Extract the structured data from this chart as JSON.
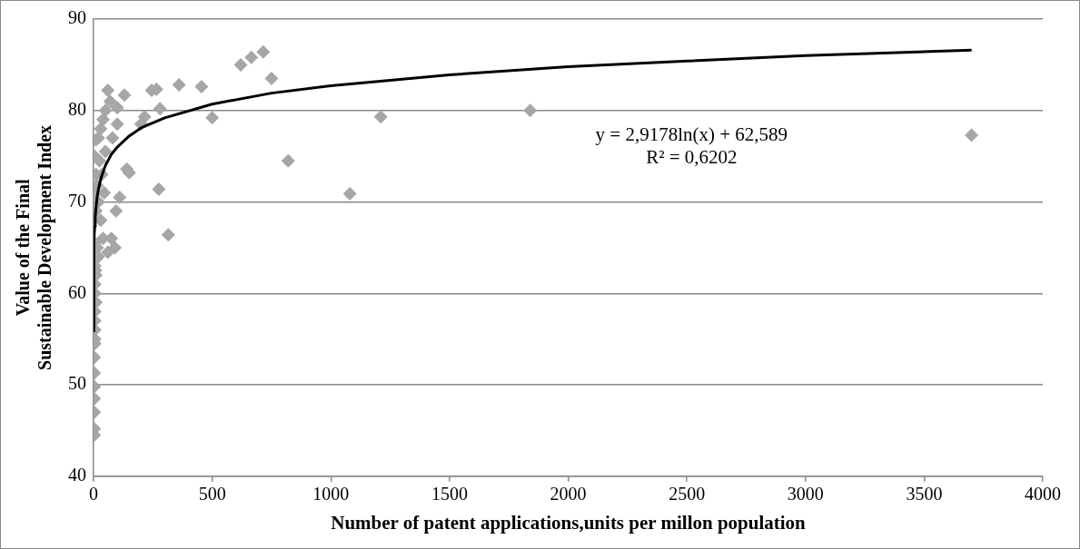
{
  "chart_data": {
    "type": "scatter",
    "xlabel": "Number of patent applications,units per millon population",
    "ylabel": "Value of the Final Sustainable Development Index",
    "xlim": [
      0,
      4000
    ],
    "xticks": [
      0,
      500,
      1000,
      1500,
      2000,
      2500,
      3000,
      3500,
      4000
    ],
    "ylim": [
      40,
      90
    ],
    "yticks": [
      40,
      50,
      60,
      70,
      80,
      90
    ],
    "grid": "y",
    "legend": false,
    "marker": "diamond",
    "annotations": [
      "y = 2,9178ln(x) + 62,589",
      "R² = 0,6202"
    ],
    "series": [
      {
        "color": "#a6a6a6",
        "x": [
          3700,
          1840,
          1210,
          1080,
          820,
          750,
          715,
          665,
          620,
          500,
          455,
          360,
          315,
          280,
          275,
          265,
          245,
          215,
          200,
          150,
          140,
          130,
          110,
          100,
          95,
          90,
          75,
          60,
          70,
          50,
          40,
          30,
          20,
          10,
          5,
          10,
          5,
          20,
          10,
          30,
          45,
          40,
          60,
          20,
          5,
          10,
          5,
          5,
          10,
          5,
          5,
          5,
          5,
          5,
          3,
          3,
          3,
          3,
          3,
          3,
          3,
          8,
          15,
          5,
          50,
          80,
          100,
          25,
          35,
          15
        ],
        "values": [
          77.3,
          80,
          79.3,
          70.9,
          74.5,
          83.5,
          86.4,
          85.8,
          85,
          79.2,
          82.6,
          82.8,
          66.4,
          80.2,
          71.4,
          82.3,
          82.2,
          79.3,
          78.5,
          73.2,
          73.6,
          81.7,
          70.5,
          80.3,
          69,
          65,
          66,
          82.2,
          81,
          80,
          79,
          78,
          77,
          76.8,
          75,
          73,
          71,
          70,
          69,
          68,
          71,
          66,
          64.5,
          64,
          63,
          62,
          61,
          60,
          59,
          58,
          57,
          56,
          55,
          54.5,
          53,
          51.3,
          49.8,
          48.5,
          47,
          45.2,
          44.5,
          62.5,
          65,
          65.5,
          75.5,
          77,
          78.5,
          74.5,
          73,
          71.8
        ]
      },
      {
        "type": "line",
        "color": "#000000",
        "marker": "none",
        "x": [
          0.1,
          0.2,
          0.5,
          1,
          2,
          3,
          5,
          7,
          10,
          15,
          20,
          30,
          50,
          75,
          100,
          150,
          200,
          300,
          500,
          750,
          1000,
          1500,
          2000,
          2500,
          3000,
          3700
        ],
        "values": [
          55.9,
          57.9,
          60.6,
          62.6,
          64.6,
          65.8,
          67.3,
          68.3,
          69.3,
          70.5,
          71.3,
          72.5,
          74.0,
          75.2,
          76.0,
          77.2,
          78.1,
          79.2,
          80.7,
          81.9,
          82.7,
          83.9,
          84.8,
          85.4,
          86.0,
          86.6
        ]
      }
    ]
  }
}
